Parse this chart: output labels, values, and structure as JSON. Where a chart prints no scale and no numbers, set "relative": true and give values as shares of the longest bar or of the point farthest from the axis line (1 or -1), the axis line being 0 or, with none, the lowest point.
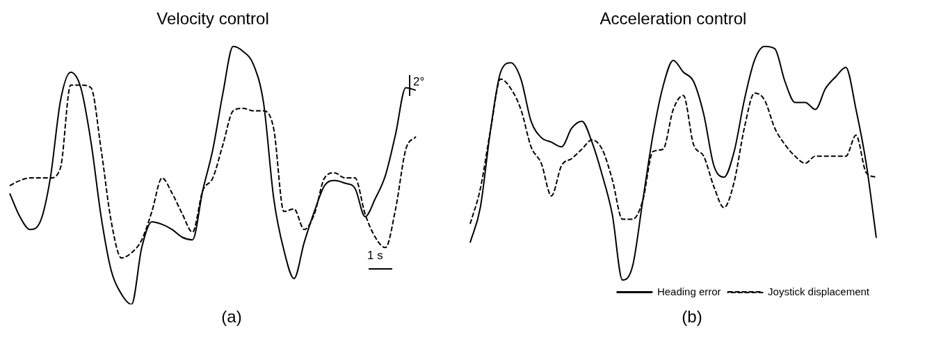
{
  "chart_data": [
    {
      "type": "line",
      "title": "Velocity control",
      "relative": true,
      "legend": false,
      "marker": "none",
      "categories": [
        null,
        null,
        null,
        null,
        null,
        null,
        null,
        null,
        null,
        null,
        null,
        null,
        null,
        null,
        null,
        null,
        null,
        null,
        null,
        null,
        null,
        null,
        null,
        null,
        null,
        null,
        null,
        null,
        null,
        null,
        null,
        null,
        null,
        null,
        null,
        null,
        null,
        null,
        null,
        null,
        null
      ],
      "series": [
        {
          "color": "#000000",
          "line_style": "solid",
          "values": [
            0.43,
            0.34,
            0.29,
            0.32,
            0.49,
            0.79,
            0.9,
            0.84,
            0.63,
            0.34,
            0.13,
            0.04,
            0,
            0.22,
            0.32,
            0.31,
            0.29,
            0.26,
            0.25,
            0.44,
            0.6,
            0.82,
            1,
            0.98,
            0.93,
            0.78,
            0.41,
            0.21,
            0.1,
            0.24,
            0.36,
            0.46,
            0.48,
            0.47,
            0.45,
            0.34,
            0.41,
            0.5,
            0.66,
            0.84,
            0.83
          ]
        },
        {
          "color": "#000000",
          "line_style": "dashed",
          "values": [
            0.46,
            0.48,
            0.49,
            0.49,
            0.49,
            0.53,
            0.85,
            0.85,
            0.84,
            0.6,
            0.32,
            0.18,
            0.2,
            0.25,
            0.36,
            0.49,
            0.43,
            0.35,
            0.28,
            0.44,
            0.49,
            0.62,
            0.75,
            0.76,
            0.75,
            0.75,
            0.68,
            0.36,
            0.37,
            0.29,
            0.35,
            0.49,
            0.51,
            0.49,
            0.49,
            0.35,
            0.26,
            0.22,
            0.37,
            0.6,
            0.65
          ]
        }
      ],
      "annotations": [
        "2°",
        "1 s",
        "(a)"
      ]
    },
    {
      "type": "line",
      "title": "Acceleration control",
      "relative": true,
      "legend": "bottom right",
      "marker": "none",
      "categories": [
        null,
        null,
        null,
        null,
        null,
        null,
        null,
        null,
        null,
        null,
        null,
        null,
        null,
        null,
        null,
        null,
        null,
        null,
        null,
        null,
        null,
        null,
        null,
        null,
        null,
        null,
        null,
        null,
        null,
        null,
        null,
        null,
        null,
        null,
        null,
        null,
        null,
        null,
        null,
        null,
        null
      ],
      "series": [
        {
          "name": "Heading error",
          "color": "#000000",
          "line_style": "solid",
          "values": [
            0.16,
            0.31,
            0.64,
            0.89,
            0.93,
            0.86,
            0.68,
            0.61,
            0.59,
            0.57,
            0.65,
            0.68,
            0.59,
            0.45,
            0.28,
            0,
            0.06,
            0.34,
            0.62,
            0.83,
            0.94,
            0.89,
            0.85,
            0.71,
            0.49,
            0.44,
            0.55,
            0.77,
            0.94,
            1,
            0.99,
            0.85,
            0.76,
            0.76,
            0.73,
            0.82,
            0.87,
            0.91,
            0.73,
            0.5,
            0.18
          ]
        },
        {
          "name": "Joystick displacement",
          "color": "#000000",
          "line_style": "dashed",
          "values": [
            0.24,
            0.39,
            0.64,
            0.86,
            0.82,
            0.73,
            0.57,
            0.5,
            0.36,
            0.49,
            0.52,
            0.56,
            0.6,
            0.56,
            0.43,
            0.26,
            0.26,
            0.34,
            0.55,
            0.56,
            0.73,
            0.79,
            0.58,
            0.53,
            0.4,
            0.31,
            0.42,
            0.65,
            0.8,
            0.77,
            0.65,
            0.58,
            0.53,
            0.5,
            0.53,
            0.53,
            0.53,
            0.53,
            0.62,
            0.46,
            0.44
          ]
        }
      ],
      "annotations": [
        "(b)"
      ]
    }
  ]
}
